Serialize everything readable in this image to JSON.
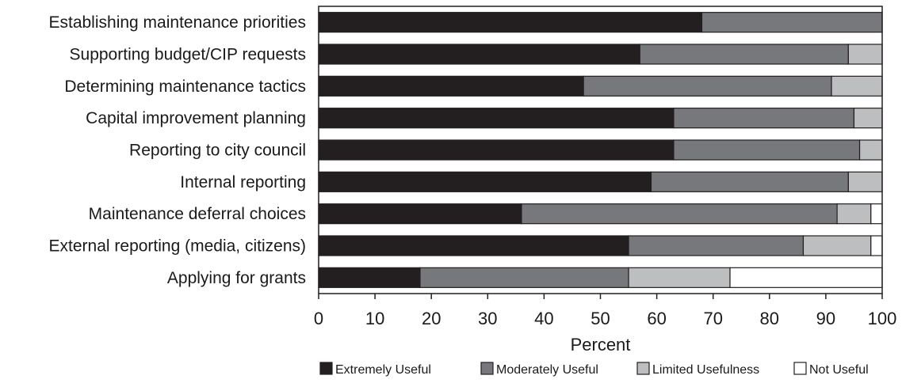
{
  "chart_data": {
    "type": "bar",
    "orientation": "horizontal",
    "stacked": true,
    "title": "",
    "xlabel": "Percent",
    "ylabel": "",
    "xlim": [
      0,
      100
    ],
    "xticks": [
      "0",
      "10",
      "20",
      "30",
      "40",
      "50",
      "60",
      "70",
      "80",
      "90",
      "100"
    ],
    "grid": false,
    "legend_position": "bottom",
    "categories": [
      "Establishing maintenance priorities",
      "Supporting budget/CIP requests",
      "Determining maintenance tactics",
      "Capital improvement planning",
      "Reporting to city council",
      "Internal reporting",
      "Maintenance deferral choices",
      "External reporting (media, citizens)",
      "Applying for grants"
    ],
    "series": [
      {
        "name": "Extremely Useful",
        "color": "#231f20",
        "values": [
          68,
          57,
          47,
          63,
          63,
          59,
          36,
          55,
          18
        ]
      },
      {
        "name": "Moderately Useful",
        "color": "#77787b",
        "values": [
          32,
          37,
          44,
          32,
          33,
          35,
          56,
          31,
          37
        ]
      },
      {
        "name": "Limited Usefulness",
        "color": "#bcbec0",
        "values": [
          0,
          6,
          9,
          5,
          4,
          6,
          6,
          12,
          18
        ]
      },
      {
        "name": "Not Useful",
        "color": "#ffffff",
        "values": [
          0,
          0,
          0,
          0,
          0,
          0,
          2,
          2,
          27
        ]
      }
    ]
  }
}
